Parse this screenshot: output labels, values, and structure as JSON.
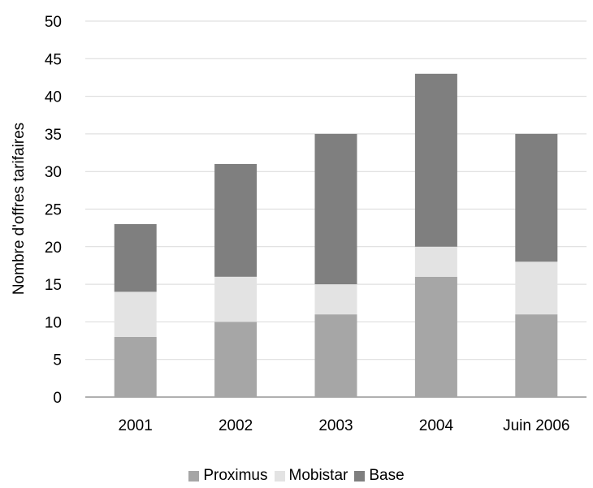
{
  "chart_data": {
    "type": "bar",
    "stacked": true,
    "title": "",
    "xlabel": "",
    "ylabel": "Nombre d'offres tarifaires",
    "categories": [
      "2001",
      "2002",
      "2003",
      "2004",
      "Juin 2006"
    ],
    "ylim": [
      0,
      50
    ],
    "yticks": [
      0,
      5,
      10,
      15,
      20,
      25,
      30,
      35,
      40,
      45,
      50
    ],
    "grid": true,
    "legend_position": "bottom",
    "series": [
      {
        "name": "Proximus",
        "color": "#a6a6a6",
        "values": [
          8,
          10,
          11,
          16,
          11
        ]
      },
      {
        "name": "Mobistar",
        "color": "#e3e3e3",
        "values": [
          6,
          6,
          4,
          4,
          7
        ]
      },
      {
        "name": "Base",
        "color": "#7f7f7f",
        "values": [
          9,
          15,
          20,
          23,
          17
        ]
      }
    ]
  }
}
